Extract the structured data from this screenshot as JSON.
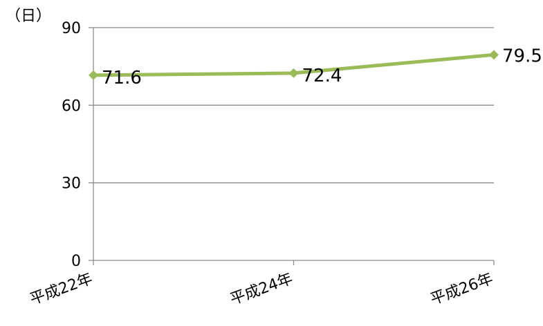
{
  "chart_data": {
    "type": "line",
    "categories": [
      "平成22年",
      "平成24年",
      "平成26年"
    ],
    "series": [
      {
        "values": [
          71.6,
          72.4,
          79.5
        ],
        "data_labels": [
          "71.6",
          "72.4",
          "79.5"
        ]
      }
    ],
    "y_unit_label": "（日）",
    "ylim": [
      0,
      90
    ],
    "yticks": [
      0,
      30,
      60,
      90
    ],
    "ytick_labels": [
      "0",
      "30",
      "60",
      "90"
    ],
    "grid": true,
    "legend": "none",
    "colors": {
      "line": "#9bbb59",
      "grid": "#8c8c8c",
      "axis": "#8c8c8c"
    }
  }
}
